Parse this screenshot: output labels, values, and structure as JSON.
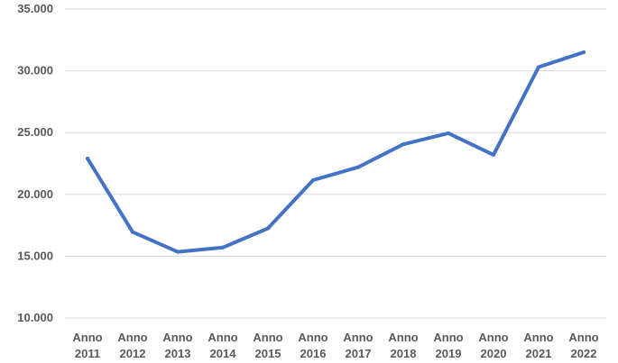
{
  "chart_data": {
    "type": "line",
    "categories": [
      [
        "Anno",
        "2011"
      ],
      [
        "Anno",
        "2012"
      ],
      [
        "Anno",
        "2013"
      ],
      [
        "Anno",
        "2014"
      ],
      [
        "Anno",
        "2015"
      ],
      [
        "Anno",
        "2016"
      ],
      [
        "Anno",
        "2017"
      ],
      [
        "Anno",
        "2018"
      ],
      [
        "Anno",
        "2019"
      ],
      [
        "Anno",
        "2020"
      ],
      [
        "Anno",
        "2021"
      ],
      [
        "Anno",
        "2022"
      ]
    ],
    "series": [
      {
        "values": [
          22900,
          16950,
          15350,
          15700,
          17250,
          21150,
          22200,
          24050,
          24950,
          23200,
          30300,
          31500
        ],
        "color": "#4472c4"
      }
    ],
    "ylim": [
      10000,
      35000
    ],
    "yticks": [
      10000,
      15000,
      20000,
      25000,
      30000,
      35000
    ],
    "ytick_labels": [
      "10.000",
      "15.000",
      "20.000",
      "25.000",
      "30.000",
      "35.000"
    ],
    "grid": true,
    "title": "",
    "xlabel": "",
    "ylabel": ""
  }
}
